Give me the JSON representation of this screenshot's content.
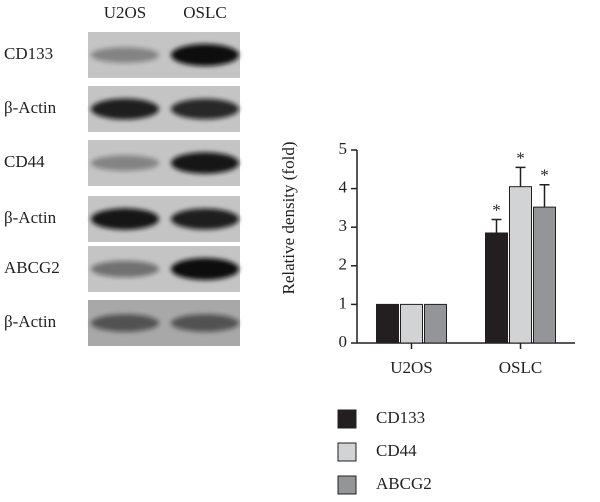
{
  "blots": {
    "columns": [
      "U2OS",
      "OSLC"
    ],
    "rows": [
      "CD133",
      "β-Actin",
      "CD44",
      "β-Actin",
      "ABCG2",
      "β-Actin"
    ]
  },
  "chart_data": {
    "type": "bar",
    "ylabel": "Relative density (fold)",
    "categories": [
      "U2OS",
      "OSLC"
    ],
    "series": [
      {
        "name": "CD133",
        "color": "#231f20",
        "values": [
          1,
          2.85
        ],
        "errors": [
          0,
          0.35
        ],
        "labels": [
          null,
          "*"
        ]
      },
      {
        "name": "CD44",
        "color": "#d1d3d4",
        "values": [
          1,
          4.05
        ],
        "errors": [
          0,
          0.5
        ],
        "labels": [
          null,
          "*"
        ]
      },
      {
        "name": "ABCG2",
        "color": "#939598",
        "values": [
          1,
          3.52
        ],
        "errors": [
          0,
          0.58
        ],
        "labels": [
          null,
          "*"
        ]
      }
    ],
    "ylim": [
      0,
      5
    ],
    "yticks": [
      0,
      1,
      2,
      3,
      4,
      5
    ],
    "legend": "bottom"
  }
}
